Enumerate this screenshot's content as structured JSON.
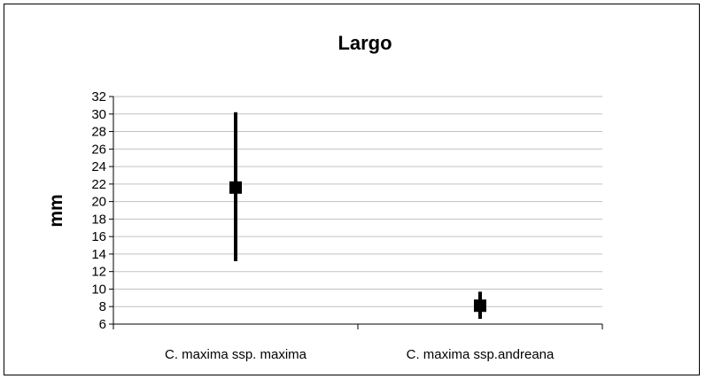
{
  "chart_data": {
    "type": "scatter",
    "title": "Largo",
    "xlabel": "",
    "ylabel": "mm",
    "categories": [
      "C. maxima ssp. maxima",
      "C. maxima ssp.andreana"
    ],
    "series": [
      {
        "points": [
          {
            "category": "C. maxima ssp. maxima",
            "mean": 21.6,
            "min": 13.2,
            "max": 30.2
          },
          {
            "category": "C. maxima ssp.andreana",
            "mean": 8.1,
            "min": 6.6,
            "max": 9.7
          }
        ]
      }
    ],
    "ylim": [
      6,
      32
    ],
    "yticks": [
      6,
      8,
      10,
      12,
      14,
      16,
      18,
      20,
      22,
      24,
      26,
      28,
      30,
      32
    ],
    "grid": true,
    "legend": "none",
    "colors": {
      "marker": "#000000",
      "grid": "#c0c0c0",
      "axis": "#000000"
    }
  }
}
